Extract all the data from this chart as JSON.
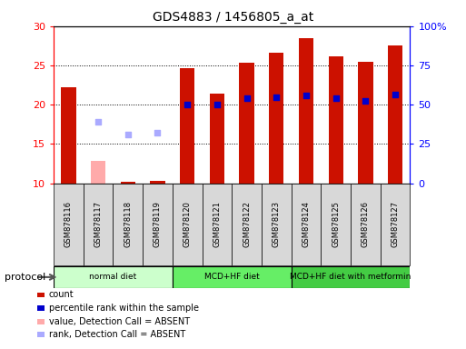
{
  "title": "GDS4883 / 1456805_a_at",
  "samples": [
    "GSM878116",
    "GSM878117",
    "GSM878118",
    "GSM878119",
    "GSM878120",
    "GSM878121",
    "GSM878122",
    "GSM878123",
    "GSM878124",
    "GSM878125",
    "GSM878126",
    "GSM878127"
  ],
  "count_values": [
    22.2,
    null,
    10.2,
    10.3,
    24.6,
    21.4,
    25.4,
    26.6,
    28.5,
    26.1,
    25.5,
    27.5
  ],
  "count_absent": [
    null,
    12.8,
    null,
    null,
    null,
    null,
    null,
    null,
    null,
    null,
    null,
    null
  ],
  "percentile_values": [
    null,
    null,
    null,
    null,
    20.0,
    20.0,
    20.8,
    20.9,
    21.2,
    20.8,
    20.5,
    21.3
  ],
  "percentile_absent": [
    null,
    17.8,
    16.2,
    16.4,
    null,
    null,
    null,
    null,
    null,
    null,
    null,
    null
  ],
  "ylim_left": [
    10,
    30
  ],
  "ylim_right": [
    0,
    100
  ],
  "yticks_left": [
    10,
    15,
    20,
    25,
    30
  ],
  "yticks_right": [
    0,
    25,
    50,
    75,
    100
  ],
  "ytick_labels_right": [
    "0",
    "25",
    "50",
    "75",
    "100%"
  ],
  "protocols": [
    {
      "label": "normal diet",
      "start": 0,
      "end": 3,
      "color": "#ccffcc"
    },
    {
      "label": "MCD+HF diet",
      "start": 4,
      "end": 7,
      "color": "#88ee88"
    },
    {
      "label": "MCD+HF diet with metformin",
      "start": 8,
      "end": 11,
      "color": "#44dd44"
    }
  ],
  "bar_color_present": "#cc1100",
  "bar_color_absent": "#ffaaaa",
  "dot_color_present": "#0000cc",
  "dot_color_absent": "#aaaaff",
  "bar_width": 0.5,
  "dot_size": 20,
  "background_color": "#ffffff",
  "plot_bg_color": "#ffffff",
  "label_bg_color": "#d8d8d8",
  "legend_items": [
    {
      "label": "count",
      "color": "#cc1100"
    },
    {
      "label": "percentile rank within the sample",
      "color": "#0000cc"
    },
    {
      "label": "value, Detection Call = ABSENT",
      "color": "#ffaaaa"
    },
    {
      "label": "rank, Detection Call = ABSENT",
      "color": "#aaaaff"
    }
  ]
}
